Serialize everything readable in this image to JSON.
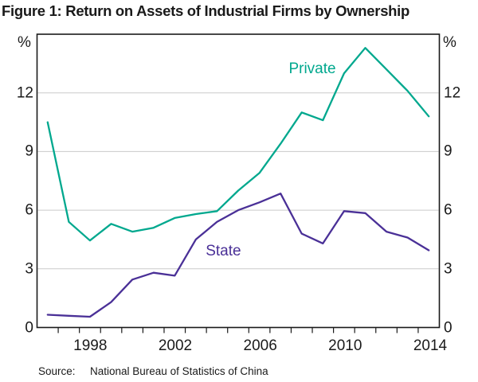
{
  "title": "Figure 1: Return on Assets of Industrial Firms by Ownership",
  "source": {
    "label": "Source:",
    "text": "National Bureau of Statistics of China"
  },
  "chart_data": {
    "type": "line",
    "title": "Return on Assets of Industrial Firms by Ownership",
    "unit_left": "%",
    "unit_right": "%",
    "x": [
      1996,
      1997,
      1998,
      1999,
      2000,
      2001,
      2002,
      2003,
      2004,
      2005,
      2006,
      2007,
      2008,
      2009,
      2010,
      2011,
      2012,
      2013,
      2014
    ],
    "series": [
      {
        "name": "Private",
        "color": "#00A88E",
        "values": [
          10.5,
          5.4,
          4.45,
          5.3,
          4.9,
          5.1,
          5.6,
          5.8,
          5.95,
          7.0,
          7.9,
          9.4,
          11.0,
          10.6,
          13.0,
          14.3,
          13.2,
          12.1,
          10.8
        ]
      },
      {
        "name": "State",
        "color": "#4A3097",
        "values": [
          0.65,
          0.6,
          0.55,
          1.3,
          2.45,
          2.8,
          2.65,
          4.5,
          5.4,
          6.0,
          6.4,
          6.85,
          4.8,
          4.3,
          5.95,
          5.85,
          4.9,
          4.6,
          3.95
        ]
      }
    ],
    "annotations": [
      {
        "text": "Private",
        "x": 2008.5,
        "y": 13.2,
        "color": "#00A88E"
      },
      {
        "text": "State",
        "x": 2004.3,
        "y": 3.9,
        "color": "#4A3097"
      }
    ],
    "ylim": [
      0,
      15
    ],
    "yticks": [
      0,
      3,
      6,
      9,
      12
    ],
    "xticklabels": [
      "1998",
      "2002",
      "2006",
      "2010",
      "2014"
    ],
    "grid": "horizontal",
    "legend_position": "inline-annotations",
    "axis_color": "#1a1a1a",
    "grid_color": "#cacaca"
  }
}
